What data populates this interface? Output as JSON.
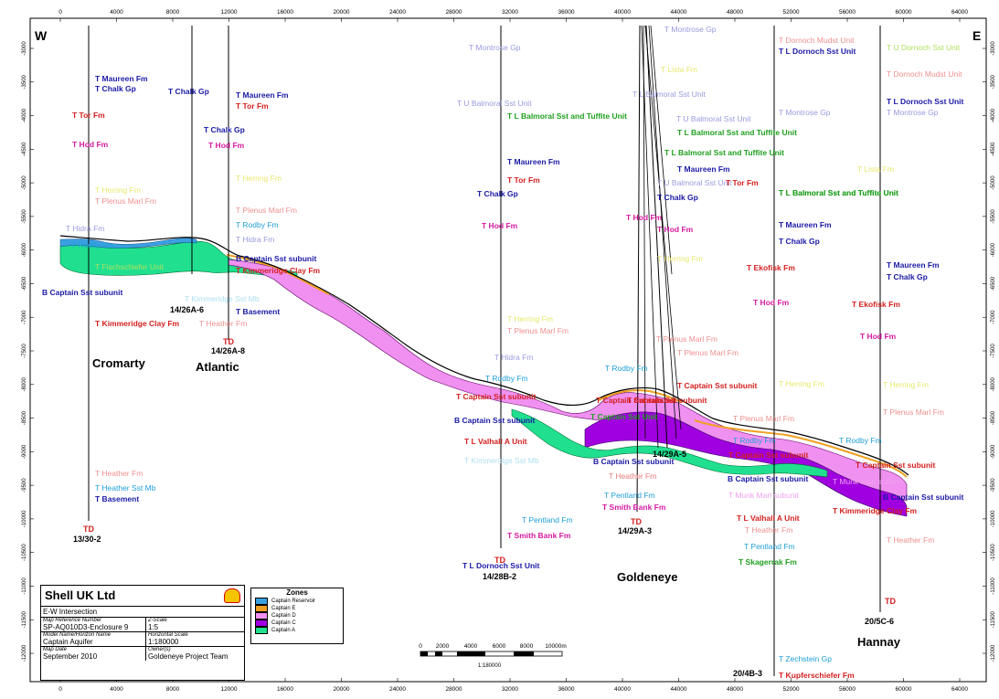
{
  "ticks_x": [
    "0",
    "4000",
    "8000",
    "12000",
    "16000",
    "20000",
    "24000",
    "28000",
    "32000",
    "36000",
    "40000",
    "44000",
    "48000",
    "52000",
    "56000",
    "60000",
    "64000"
  ],
  "ticks_y": [
    "-3000",
    "-3500",
    "-4000",
    "-4500",
    "-5000",
    "-5500",
    "-6000",
    "-6500",
    "-7000",
    "-7500",
    "-8000",
    "-8500",
    "-9000",
    "-9500",
    "-10000",
    "-10500",
    "-11000",
    "-11500",
    "-12000"
  ],
  "dir_w": "W",
  "dir_e": "E",
  "field_labels": {
    "cromarty": "Cromarty",
    "atlantic": "Atlantic",
    "goldeneye": "Goldeneye",
    "hannay": "Hannay"
  },
  "wells": {
    "w1": {
      "name": "13/30-2",
      "td": "TD"
    },
    "w2": {
      "name": "14/26A-6"
    },
    "w3": {
      "name": "14/26A-8",
      "td": "TD"
    },
    "w4": {
      "name": "14/28B-2",
      "td": "TD"
    },
    "w5": {
      "name": "14/29A-3",
      "td": "TD"
    },
    "w6": {
      "name": "14/29A-5"
    },
    "w7": {
      "name": "20/4B-3"
    },
    "w8": {
      "name": "20/5C-6",
      "td": "TD"
    }
  },
  "picks": [
    {
      "t": "T Maureen Fm",
      "c": "#1a1aa6"
    },
    {
      "t": "T Chalk Gp",
      "c": "#1a1aa6"
    },
    {
      "t": "T Tor Fm",
      "c": "#d42020"
    },
    {
      "t": "T Hod Fm",
      "c": "#d41aa0"
    },
    {
      "t": "T Herring Fm",
      "c": "#e8e870"
    },
    {
      "t": "T Plenus Marl Fm",
      "c": "#f09090"
    },
    {
      "t": "T Hidra Fm",
      "c": "#9a9ae0"
    },
    {
      "t": "T Rodby Fm",
      "c": "#20a0d8"
    },
    {
      "t": "T Fischschiefer Unit",
      "c": "#b0e060"
    },
    {
      "t": "B Captain Sst subunit",
      "c": "#1a1aa6"
    },
    {
      "t": "T Kimmeridge Clay Fm",
      "c": "#d42020"
    },
    {
      "t": "T Heather Fm",
      "c": "#f09090"
    },
    {
      "t": "T Heather Sst Mb",
      "c": "#20a0d8"
    },
    {
      "t": "T Basement",
      "c": "#1a1aa6"
    },
    {
      "t": "T Chalk Gp",
      "c": "#1a1aa6"
    },
    {
      "t": "T Maureen Fm",
      "c": "#1a1aa6"
    },
    {
      "t": "T Tor Fm",
      "c": "#d42020"
    },
    {
      "t": "T Chalk Gp",
      "c": "#1a1aa6"
    },
    {
      "t": "T Hod Fm",
      "c": "#d41aa0"
    },
    {
      "t": "T Herring Fm",
      "c": "#e8e870"
    },
    {
      "t": "T Plenus Marl Fm",
      "c": "#f09090"
    },
    {
      "t": "T Rodby Fm",
      "c": "#20a0d8"
    },
    {
      "t": "T Hidra Fm",
      "c": "#9a9ae0"
    },
    {
      "t": "B Captain Sst subunit",
      "c": "#1a1aa6"
    },
    {
      "t": "T Kimmeridge Clay Fm",
      "c": "#d42020"
    },
    {
      "t": "T Kimmeridge Sst Mb",
      "c": "#b0e0f0"
    },
    {
      "t": "T Heather Fm",
      "c": "#f09090"
    },
    {
      "t": "T Basement",
      "c": "#1a1aa6"
    },
    {
      "t": "T Montrose Gp",
      "c": "#9a9ae0"
    },
    {
      "t": "T U Balmoral Sst Unit",
      "c": "#9a9ae0"
    },
    {
      "t": "T L Balmoral Sst and Tuffite Unit",
      "c": "#20a020"
    },
    {
      "t": "T Maureen Fm",
      "c": "#1a1aa6"
    },
    {
      "t": "T Tor Fm",
      "c": "#d42020"
    },
    {
      "t": "T Chalk Gp",
      "c": "#1a1aa6"
    },
    {
      "t": "T Hod Fm",
      "c": "#d41aa0"
    },
    {
      "t": "T Herring Fm",
      "c": "#e8e870"
    },
    {
      "t": "T Plenus Marl Fm",
      "c": "#f09090"
    },
    {
      "t": "T Hidra Fm",
      "c": "#9a9ae0"
    },
    {
      "t": "T Rodby Fm",
      "c": "#20a0d8"
    },
    {
      "t": "T Captain Sst subunit",
      "c": "#d42020"
    },
    {
      "t": "B Captain Sst subunit",
      "c": "#1a1aa6"
    },
    {
      "t": "T L Valhall A Unit",
      "c": "#d42020"
    },
    {
      "t": "T Kimmeridge Sst Mb",
      "c": "#b0e0f0"
    },
    {
      "t": "T Heather Fm",
      "c": "#f09090"
    },
    {
      "t": "T Pentland Fm",
      "c": "#20a0d8"
    },
    {
      "t": "T Smith Bank Fm",
      "c": "#d41aa0"
    },
    {
      "t": "T L Dornoch Sst Unit",
      "c": "#1a1aa6"
    },
    {
      "t": "T Montrose Gp",
      "c": "#9a9ae0"
    },
    {
      "t": "T Lista Fm",
      "c": "#e8e870"
    },
    {
      "t": "T L Balmoral Sst Unit",
      "c": "#9a9ae0"
    },
    {
      "t": "T U Balmoral Sst Unit",
      "c": "#9a9ae0"
    },
    {
      "t": "T L Balmoral Sst and Tuffite Unit",
      "c": "#20a020"
    },
    {
      "t": "T L Balmoral Sst and Tuffite Unit",
      "c": "#20a020"
    },
    {
      "t": "T Maureen Fm",
      "c": "#1a1aa6"
    },
    {
      "t": "T U Balmoral Sst Unit",
      "c": "#9a9ae0"
    },
    {
      "t": "T Tor Fm",
      "c": "#d42020"
    },
    {
      "t": "T Chalk Gp",
      "c": "#1a1aa6"
    },
    {
      "t": "T Hod Fm",
      "c": "#d41aa0"
    },
    {
      "t": "T Hod Fm",
      "c": "#d41aa0"
    },
    {
      "t": "T Herring Fm",
      "c": "#e8e870"
    },
    {
      "t": "T Plenus Marl Fm",
      "c": "#f09090"
    },
    {
      "t": "T Plenus Marl Fm",
      "c": "#f09090"
    },
    {
      "t": "T Rodby Fm",
      "c": "#20a0d8"
    },
    {
      "t": "T Captain Sst subunit",
      "c": "#d42020"
    },
    {
      "t": "T Captain Sst subunit",
      "c": "#d42020"
    },
    {
      "t": "T Captain Sst Unit",
      "c": "#20a020"
    },
    {
      "t": "T Captain Sst subunit",
      "c": "#d42020"
    },
    {
      "t": "B Captain Sst subunit",
      "c": "#1a1aa6"
    },
    {
      "t": "T Heather Fm",
      "c": "#f09090"
    },
    {
      "t": "T Pentland Fm",
      "c": "#20a0d8"
    },
    {
      "t": "T Smith Bank Fm",
      "c": "#d41aa0"
    },
    {
      "t": "T Dornoch Mudst Unit",
      "c": "#f09090"
    },
    {
      "t": "T L Dornoch Sst Unit",
      "c": "#1a1aa6"
    },
    {
      "t": "T Montrose Gp",
      "c": "#9a9ae0"
    },
    {
      "t": "T L Balmoral Sst and Tuffite Unit",
      "c": "#20a020"
    },
    {
      "t": "T Maureen Fm",
      "c": "#1a1aa6"
    },
    {
      "t": "T Chalk Gp",
      "c": "#1a1aa6"
    },
    {
      "t": "T Ekofisk Fm",
      "c": "#d42020"
    },
    {
      "t": "T Hod Fm",
      "c": "#d41aa0"
    },
    {
      "t": "T Herring Fm",
      "c": "#e8e870"
    },
    {
      "t": "T Plenus Marl Fm",
      "c": "#f09090"
    },
    {
      "t": "T Rodby Fm",
      "c": "#20a0d8"
    },
    {
      "t": "T Captain Sst subunit",
      "c": "#d42020"
    },
    {
      "t": "B Captain Sst subunit",
      "c": "#1a1aa6"
    },
    {
      "t": "T Munk Marl subunit",
      "c": "#f0a0f0"
    },
    {
      "t": "T L Valhall A Unit",
      "c": "#d42020"
    },
    {
      "t": "T Heather Fm",
      "c": "#f09090"
    },
    {
      "t": "T Pentland Fm",
      "c": "#20a0d8"
    },
    {
      "t": "T Skagerrak Fm",
      "c": "#20a020"
    },
    {
      "t": "T Zechstein Gp",
      "c": "#20a0d8"
    },
    {
      "t": "T Kupferschiefer Fm",
      "c": "#d42020"
    },
    {
      "t": "T U Dornoch Sst Unit",
      "c": "#b0e060"
    },
    {
      "t": "T Dornoch Mudst Unit",
      "c": "#f09090"
    },
    {
      "t": "T L Dornoch Sst Unit",
      "c": "#1a1aa6"
    },
    {
      "t": "T Montrose Gp",
      "c": "#9a9ae0"
    },
    {
      "t": "T Lista Fm",
      "c": "#e8e870"
    },
    {
      "t": "T L Balmoral Sst and Tuffite Unit",
      "c": "#20a020"
    },
    {
      "t": "T Maureen Fm",
      "c": "#1a1aa6"
    },
    {
      "t": "T Chalk Gp",
      "c": "#1a1aa6"
    },
    {
      "t": "T Ekofisk Fm",
      "c": "#d42020"
    },
    {
      "t": "T Hod Fm",
      "c": "#d41aa0"
    },
    {
      "t": "T Herring Fm",
      "c": "#e8e870"
    },
    {
      "t": "T Plenus Marl Fm",
      "c": "#f09090"
    },
    {
      "t": "T Rodby Fm",
      "c": "#20a0d8"
    },
    {
      "t": "T Captain Sst subunit",
      "c": "#d42020"
    },
    {
      "t": "T Munk Marl subunit",
      "c": "#f0a0f0"
    },
    {
      "t": "B Captain Sst subunit",
      "c": "#1a1aa6"
    },
    {
      "t": "T Kimmeridge Clay Fm",
      "c": "#d42020"
    },
    {
      "t": "T Heather Fm",
      "c": "#f09090"
    }
  ],
  "scalebar": {
    "labels": [
      "0",
      "2000",
      "4000",
      "6000",
      "8000",
      "10000m"
    ],
    "ratio": "1:180000"
  },
  "titleblock": {
    "company": "Shell UK Ltd",
    "title": "E-W Intersection",
    "map_ref_label": "Map Reference Number",
    "map_ref": "SP-AQ010D3-Enclosure 9",
    "zscale_label": "Z-Scale",
    "zscale": "1:5",
    "model_label": "Model Name/Horizon Name",
    "model": "Captain Aquifer",
    "hscale_label": "Horizontal Scale",
    "hscale": "1:180000",
    "date_label": "Map Date",
    "date": "September 2010",
    "owner_label": "Owner(s)",
    "owner": "Goldeneye Project Team"
  },
  "zones": {
    "title": "Zones",
    "items": [
      {
        "label": "Captain Reservoir",
        "color": "#3aa0e0"
      },
      {
        "label": "Captain E",
        "color": "#f0a020"
      },
      {
        "label": "Captain D",
        "color": "#f090f0"
      },
      {
        "label": "Captain C",
        "color": "#a000e0"
      },
      {
        "label": "Captain A",
        "color": "#20e090"
      }
    ]
  }
}
